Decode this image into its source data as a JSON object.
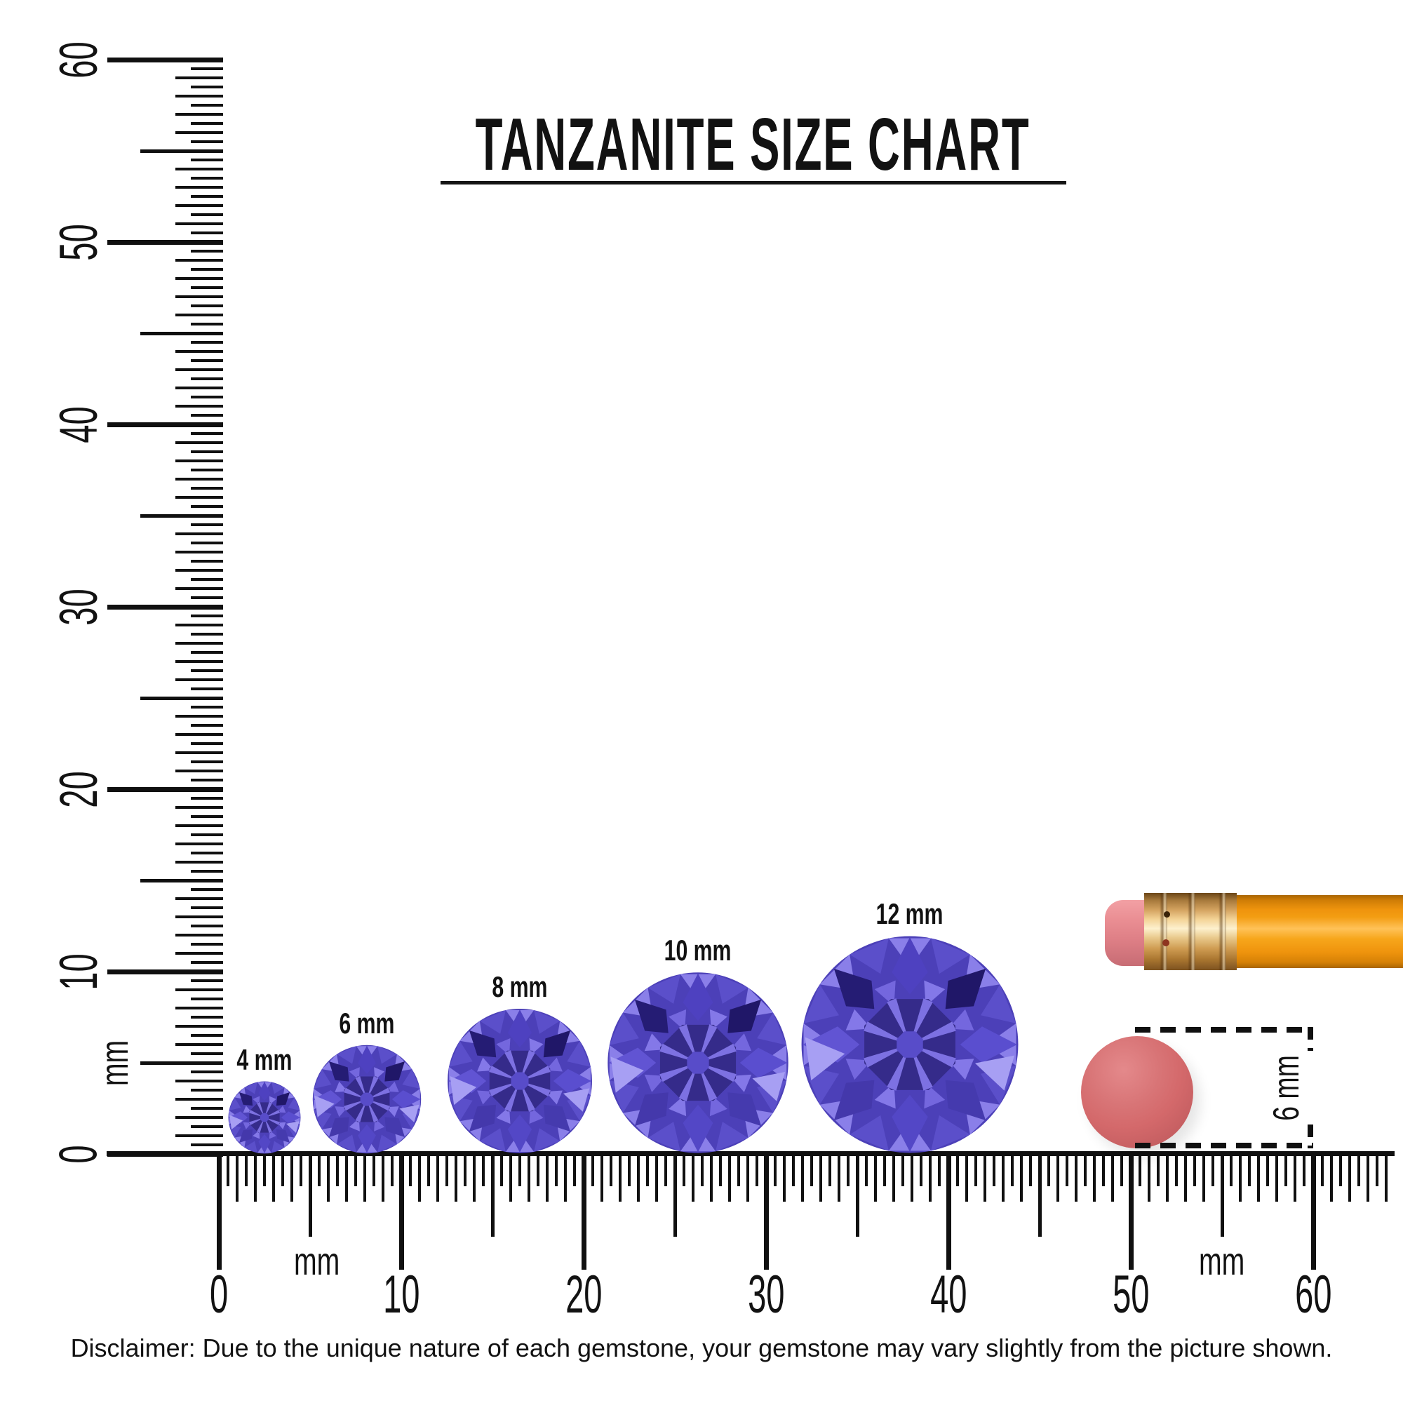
{
  "title": {
    "text": "TANZANITE SIZE CHART"
  },
  "gems": {
    "items": [
      {
        "label": "4 mm",
        "size_mm": 4
      },
      {
        "label": "6 mm",
        "size_mm": 6
      },
      {
        "label": "8 mm",
        "size_mm": 8
      },
      {
        "label": "10 mm",
        "size_mm": 10
      },
      {
        "label": "12 mm",
        "size_mm": 12
      }
    ],
    "gemstone_name": "Tanzanite"
  },
  "rulers": {
    "vertical": {
      "unit": "mm",
      "numbers": [
        "60",
        "50",
        "40",
        "30",
        "20",
        "10",
        "0"
      ],
      "numbered_interval_mm": 10,
      "tick_interval_mm": 0.5,
      "range_mm": [
        0,
        60
      ]
    },
    "horizontal": {
      "unit_left": "mm",
      "unit_right": "mm",
      "numbers": [
        "0",
        "10",
        "20",
        "30",
        "40",
        "50",
        "60"
      ],
      "numbered_interval_mm": 10,
      "tick_interval_mm": 0.5,
      "range_mm": [
        0,
        64
      ]
    }
  },
  "eraser_measure": {
    "label": "6 mm"
  },
  "disclaimer": {
    "text": "Disclaimer: Due to the unique nature of each gemstone, your gemstone may vary slightly from the picture shown."
  },
  "colors": {
    "ink": "#101010",
    "gem_base": "#4c40b8",
    "gem_girdle_light": "#8a7fe9",
    "gem_girdle_mid": "#5b4fca",
    "gem_kites": [
      "#4e41c0",
      "#201768",
      "#5a4ecf",
      "#453aae",
      "#5347c6",
      "#4438ab",
      "#6154d3",
      "#251c74"
    ],
    "gem_star_light": "#8478e8",
    "gem_star_alt": "#7467de",
    "gem_table": "#352b8a",
    "gem_arm": "#7d71e2",
    "gem_center": "#584cc9",
    "gem_highlight": "#a79ff3",
    "pencil_body_orange": "#f39d12",
    "ferrule_gold": "#d4a360",
    "eraser_pink": "#ea8e93",
    "eraser_disc_red": "#d4696b"
  }
}
